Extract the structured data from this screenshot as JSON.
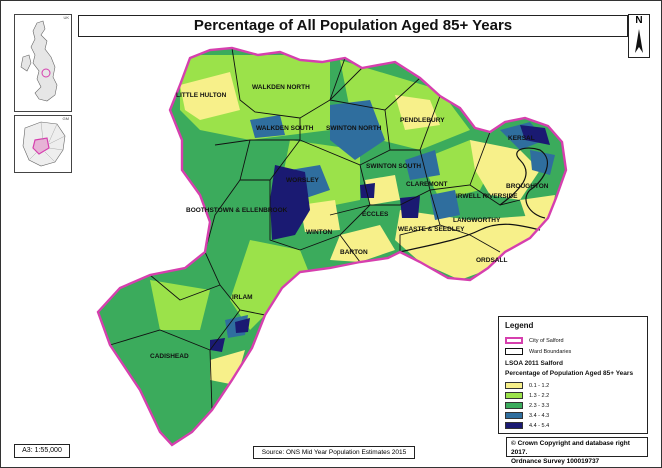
{
  "title": "Percentage of All Population Aged 85+ Years",
  "north_label": "N",
  "inset_uk_label": "UK",
  "inset_gm_label": "GM",
  "scale": "A3: 1:55,000",
  "source": "Source: ONS Mid Year Population Estimates 2015",
  "copyright": {
    "line1": "© Crown Copyright and database right 2017.",
    "line2": "Ordnance Survey 100019737"
  },
  "legend": {
    "title": "Legend",
    "boundaries": [
      {
        "label": "City of Salford",
        "color": "#d63fae"
      },
      {
        "label": "Ward Boundaries",
        "color": "#111111"
      }
    ],
    "heading1": "LSOA 2011 Salford",
    "heading2": "Percentage of Population Aged 85+ Years",
    "classes": [
      {
        "label": "0.1 - 1.2",
        "color": "#f7f08a"
      },
      {
        "label": "1.3 - 2.2",
        "color": "#9be24a"
      },
      {
        "label": "2.3 - 3.3",
        "color": "#3bab5c"
      },
      {
        "label": "3.4 - 4.3",
        "color": "#2f6e9e"
      },
      {
        "label": "4.4 - 5.4",
        "color": "#1a1a72"
      }
    ]
  },
  "wards": [
    "WALKDEN NORTH",
    "LITTLE HULTON",
    "WALKDEN SOUTH",
    "SWINTON NORTH",
    "PENDLEBURY",
    "KERSAL",
    "SWINTON SOUTH",
    "WORSLEY",
    "CLAREMONT",
    "BROUGHTON",
    "IRWELL RIVERSIDE",
    "BOOTHSTOWN & ELLENBROOK",
    "ECCLES",
    "LANGWORTHY",
    "WEASTE & SEEDLEY",
    "WINTON",
    "BARTON",
    "ORDSALL",
    "IRLAM",
    "CADISHEAD"
  ]
}
